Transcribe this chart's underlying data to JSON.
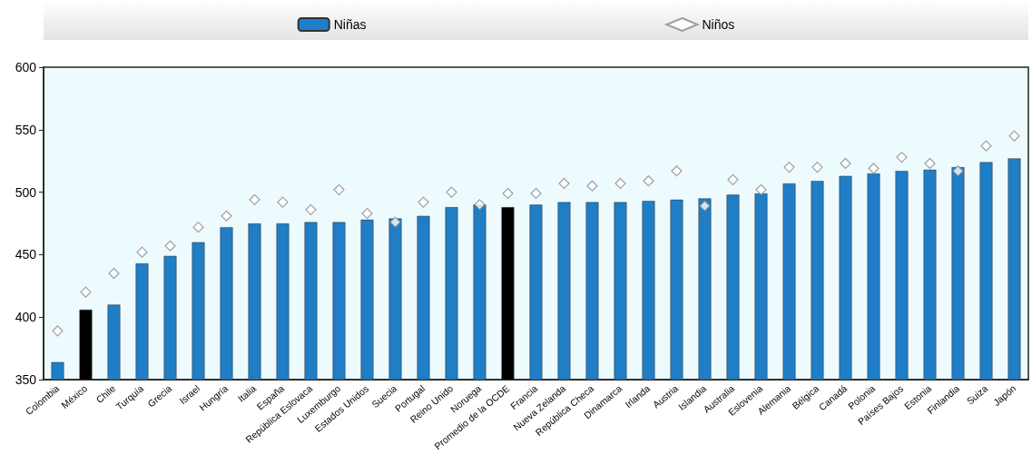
{
  "chart_data": {
    "type": "bar",
    "categories": [
      "Colombia",
      "México",
      "Chile",
      "Turquía",
      "Grecia",
      "Israel",
      "Hungría",
      "Italia",
      "España",
      "República Eslovaca",
      "Luxemburgo",
      "Estados Unidos",
      "Suecia",
      "Portugal",
      "Reino Unido",
      "Noruega",
      "Promedio de la OCDE",
      "Francia",
      "Nueva Zelanda",
      "República Checa",
      "Dinamarca",
      "Irlanda",
      "Austria",
      "Islandia",
      "Australia",
      "Eslovenia",
      "Alemania",
      "Bélgica",
      "Canadá",
      "Polonia",
      "Países Bajos",
      "Estonia",
      "Finlandia",
      "Suiza",
      "Japón"
    ],
    "series": [
      {
        "name": "Niñas",
        "color": "#1f7ec6",
        "colors": [
          "#1f7ec6",
          "#000000",
          "#1f7ec6",
          "#1f7ec6",
          "#1f7ec6",
          "#1f7ec6",
          "#1f7ec6",
          "#1f7ec6",
          "#1f7ec6",
          "#1f7ec6",
          "#1f7ec6",
          "#1f7ec6",
          "#1f7ec6",
          "#1f7ec6",
          "#1f7ec6",
          "#1f7ec6",
          "#000000",
          "#1f7ec6",
          "#1f7ec6",
          "#1f7ec6",
          "#1f7ec6",
          "#1f7ec6",
          "#1f7ec6",
          "#1f7ec6",
          "#1f7ec6",
          "#1f7ec6",
          "#1f7ec6",
          "#1f7ec6",
          "#1f7ec6",
          "#1f7ec6",
          "#1f7ec6",
          "#1f7ec6",
          "#1f7ec6",
          "#1f7ec6",
          "#1f7ec6"
        ],
        "values": [
          364,
          406,
          410,
          443,
          449,
          460,
          472,
          475,
          475,
          476,
          476,
          478,
          479,
          481,
          488,
          490,
          488,
          490,
          492,
          492,
          492,
          493,
          494,
          495,
          498,
          499,
          507,
          509,
          513,
          515,
          517,
          518,
          520,
          524,
          527
        ]
      },
      {
        "name": "Niños",
        "type": "scatter",
        "color": "#ffffff",
        "marker": "diamond",
        "values": [
          389,
          420,
          435,
          452,
          457,
          472,
          481,
          494,
          492,
          486,
          502,
          483,
          476,
          492,
          500,
          490,
          499,
          499,
          507,
          505,
          507,
          509,
          517,
          489,
          510,
          502,
          520,
          520,
          523,
          519,
          528,
          523,
          517,
          537,
          545
        ]
      }
    ],
    "ylim": [
      350,
      600
    ],
    "yticks": [
      350,
      400,
      450,
      500,
      550,
      600
    ],
    "grid": false,
    "legend": "top"
  }
}
